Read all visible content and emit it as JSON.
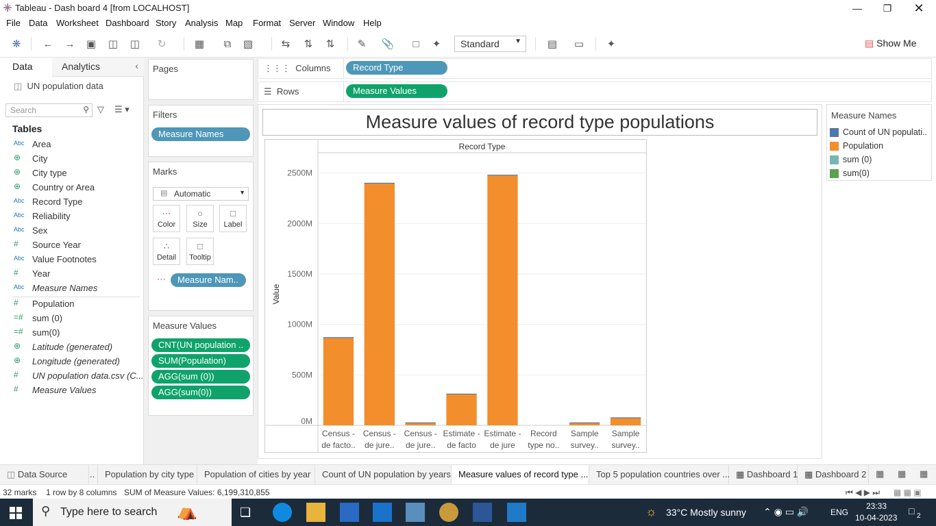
{
  "window": {
    "title": "Tableau - Dash board 4 [from LOCALHOST]"
  },
  "menu": [
    "File",
    "Data",
    "Worksheet",
    "Dashboard",
    "Story",
    "Analysis",
    "Map",
    "Format",
    "Server",
    "Window",
    "Help"
  ],
  "toolbar": {
    "view_size": "Standard",
    "show_me": "Show Me"
  },
  "left_pane": {
    "tab_data": "Data",
    "tab_analytics": "Analytics",
    "data_source": "UN population data",
    "search_placeholder": "Search",
    "tables_heading": "Tables",
    "fields": [
      {
        "type": "Abc",
        "name": "Area",
        "italic": false
      },
      {
        "type": "geo",
        "name": "City",
        "italic": false
      },
      {
        "type": "geo",
        "name": "City type",
        "italic": false
      },
      {
        "type": "geo",
        "name": "Country or Area",
        "italic": false
      },
      {
        "type": "Abc",
        "name": "Record Type",
        "italic": false
      },
      {
        "type": "Abc",
        "name": "Reliability",
        "italic": false
      },
      {
        "type": "Abc",
        "name": "Sex",
        "italic": false
      },
      {
        "type": "#",
        "name": "Source Year",
        "italic": false
      },
      {
        "type": "Abc",
        "name": "Value Footnotes",
        "italic": false
      },
      {
        "type": "#",
        "name": "Year",
        "italic": false
      },
      {
        "type": "Abc",
        "name": "Measure Names",
        "italic": true
      },
      {
        "type": "#",
        "name": "Population",
        "italic": false
      },
      {
        "type": "=#",
        "name": "sum (0)",
        "italic": false
      },
      {
        "type": "=#",
        "name": "sum(0)",
        "italic": false
      },
      {
        "type": "geo",
        "name": "Latitude (generated)",
        "italic": true
      },
      {
        "type": "geo",
        "name": "Longitude (generated)",
        "italic": true
      },
      {
        "type": "#",
        "name": "UN population data.csv (C...",
        "italic": true
      },
      {
        "type": "#",
        "name": "Measure Values",
        "italic": true
      }
    ]
  },
  "cards": {
    "pages": "Pages",
    "filters": "Filters",
    "filter_pill": "Measure Names",
    "marks": "Marks",
    "mark_type": "Automatic",
    "mark_buttons": [
      "Color",
      "Size",
      "Label",
      "Detail",
      "Tooltip"
    ],
    "marks_pill": "Measure Nam..",
    "measure_values": "Measure Values",
    "measure_pills": [
      "CNT(UN population ..",
      "SUM(Population)",
      "AGG(sum (0))",
      "AGG(sum(0))"
    ]
  },
  "shelves": {
    "columns_label": "Columns",
    "columns_pill": "Record Type",
    "rows_label": "Rows",
    "rows_pill": "Measure Values"
  },
  "dashboard": {
    "title": "Measure values of record type populations"
  },
  "legend": {
    "title": "Measure Names",
    "items": [
      {
        "name": "Count of UN populati..",
        "color": "#4e79a7"
      },
      {
        "name": "Population",
        "color": "#f28e2b"
      },
      {
        "name": "sum (0)",
        "color": "#76b7b2"
      },
      {
        "name": "sum(0)",
        "color": "#59a14f"
      }
    ]
  },
  "chart_data": {
    "type": "bar",
    "header": "Record Type",
    "ylabel": "Value",
    "ylim": [
      0,
      2600
    ],
    "yticks": [
      "0M",
      "500M",
      "1000M",
      "1500M",
      "2000M",
      "2500M"
    ],
    "ytick_values": [
      0,
      500,
      1000,
      1500,
      2000,
      2500
    ],
    "categories": [
      [
        "Census -",
        "de facto.."
      ],
      [
        "Census -",
        "de jure.."
      ],
      [
        "Census -",
        "de jure.."
      ],
      [
        "Estimate -",
        "de facto"
      ],
      [
        "Estimate -",
        "de jure"
      ],
      [
        "Record",
        "type no.."
      ],
      [
        "Sample",
        "survey.."
      ],
      [
        "Sample",
        "survey.."
      ]
    ],
    "values": [
      870,
      2400,
      25,
      310,
      2480,
      0,
      25,
      75
    ],
    "bar_color": "#f28e2b"
  },
  "sheet_tabs": [
    "Data Source",
    "..",
    "Population by city type",
    "Population of cities by year",
    "Count of UN population by years",
    "Measure values of record type ...",
    "Top 5 population countries over ...",
    "Dashboard 1",
    "Dashboard 2"
  ],
  "status": {
    "marks": "32 marks",
    "rows_cols": "1 row by 8 columns",
    "sum": "SUM of Measure Values: 6,199,310,855"
  },
  "taskbar": {
    "search_placeholder": "Type here to search",
    "weather": "33°C  Mostly sunny",
    "lang": "ENG",
    "time": "23:33",
    "date": "10-04-2023",
    "notifications": "2"
  }
}
